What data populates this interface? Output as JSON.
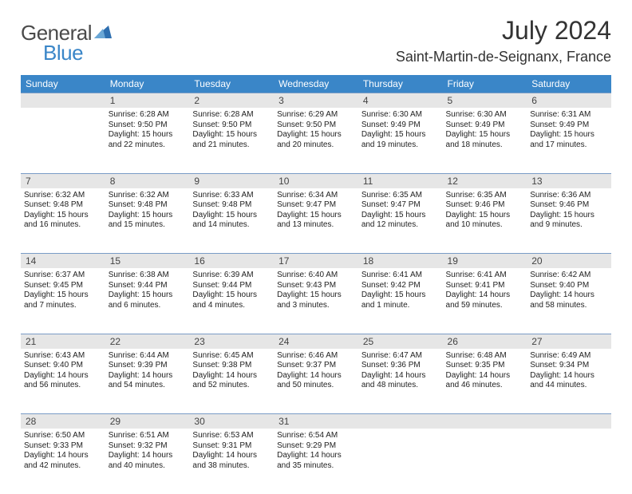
{
  "logo": {
    "text1": "General",
    "text2": "Blue",
    "tri_color": "#2e6fb0"
  },
  "header": {
    "title": "July 2024",
    "location": "Saint-Martin-de-Seignanx, France"
  },
  "colors": {
    "header_bg": "#3a86c8",
    "daynum_bg": "#e6e6e6",
    "row_border": "#7a9cc6"
  },
  "weekdays": [
    "Sunday",
    "Monday",
    "Tuesday",
    "Wednesday",
    "Thursday",
    "Friday",
    "Saturday"
  ],
  "weeks": [
    {
      "nums": [
        "",
        "1",
        "2",
        "3",
        "4",
        "5",
        "6"
      ],
      "cells": [
        null,
        {
          "sr": "Sunrise: 6:28 AM",
          "ss": "Sunset: 9:50 PM",
          "d1": "Daylight: 15 hours",
          "d2": "and 22 minutes."
        },
        {
          "sr": "Sunrise: 6:28 AM",
          "ss": "Sunset: 9:50 PM",
          "d1": "Daylight: 15 hours",
          "d2": "and 21 minutes."
        },
        {
          "sr": "Sunrise: 6:29 AM",
          "ss": "Sunset: 9:50 PM",
          "d1": "Daylight: 15 hours",
          "d2": "and 20 minutes."
        },
        {
          "sr": "Sunrise: 6:30 AM",
          "ss": "Sunset: 9:49 PM",
          "d1": "Daylight: 15 hours",
          "d2": "and 19 minutes."
        },
        {
          "sr": "Sunrise: 6:30 AM",
          "ss": "Sunset: 9:49 PM",
          "d1": "Daylight: 15 hours",
          "d2": "and 18 minutes."
        },
        {
          "sr": "Sunrise: 6:31 AM",
          "ss": "Sunset: 9:49 PM",
          "d1": "Daylight: 15 hours",
          "d2": "and 17 minutes."
        }
      ]
    },
    {
      "nums": [
        "7",
        "8",
        "9",
        "10",
        "11",
        "12",
        "13"
      ],
      "cells": [
        {
          "sr": "Sunrise: 6:32 AM",
          "ss": "Sunset: 9:48 PM",
          "d1": "Daylight: 15 hours",
          "d2": "and 16 minutes."
        },
        {
          "sr": "Sunrise: 6:32 AM",
          "ss": "Sunset: 9:48 PM",
          "d1": "Daylight: 15 hours",
          "d2": "and 15 minutes."
        },
        {
          "sr": "Sunrise: 6:33 AM",
          "ss": "Sunset: 9:48 PM",
          "d1": "Daylight: 15 hours",
          "d2": "and 14 minutes."
        },
        {
          "sr": "Sunrise: 6:34 AM",
          "ss": "Sunset: 9:47 PM",
          "d1": "Daylight: 15 hours",
          "d2": "and 13 minutes."
        },
        {
          "sr": "Sunrise: 6:35 AM",
          "ss": "Sunset: 9:47 PM",
          "d1": "Daylight: 15 hours",
          "d2": "and 12 minutes."
        },
        {
          "sr": "Sunrise: 6:35 AM",
          "ss": "Sunset: 9:46 PM",
          "d1": "Daylight: 15 hours",
          "d2": "and 10 minutes."
        },
        {
          "sr": "Sunrise: 6:36 AM",
          "ss": "Sunset: 9:46 PM",
          "d1": "Daylight: 15 hours",
          "d2": "and 9 minutes."
        }
      ]
    },
    {
      "nums": [
        "14",
        "15",
        "16",
        "17",
        "18",
        "19",
        "20"
      ],
      "cells": [
        {
          "sr": "Sunrise: 6:37 AM",
          "ss": "Sunset: 9:45 PM",
          "d1": "Daylight: 15 hours",
          "d2": "and 7 minutes."
        },
        {
          "sr": "Sunrise: 6:38 AM",
          "ss": "Sunset: 9:44 PM",
          "d1": "Daylight: 15 hours",
          "d2": "and 6 minutes."
        },
        {
          "sr": "Sunrise: 6:39 AM",
          "ss": "Sunset: 9:44 PM",
          "d1": "Daylight: 15 hours",
          "d2": "and 4 minutes."
        },
        {
          "sr": "Sunrise: 6:40 AM",
          "ss": "Sunset: 9:43 PM",
          "d1": "Daylight: 15 hours",
          "d2": "and 3 minutes."
        },
        {
          "sr": "Sunrise: 6:41 AM",
          "ss": "Sunset: 9:42 PM",
          "d1": "Daylight: 15 hours",
          "d2": "and 1 minute."
        },
        {
          "sr": "Sunrise: 6:41 AM",
          "ss": "Sunset: 9:41 PM",
          "d1": "Daylight: 14 hours",
          "d2": "and 59 minutes."
        },
        {
          "sr": "Sunrise: 6:42 AM",
          "ss": "Sunset: 9:40 PM",
          "d1": "Daylight: 14 hours",
          "d2": "and 58 minutes."
        }
      ]
    },
    {
      "nums": [
        "21",
        "22",
        "23",
        "24",
        "25",
        "26",
        "27"
      ],
      "cells": [
        {
          "sr": "Sunrise: 6:43 AM",
          "ss": "Sunset: 9:40 PM",
          "d1": "Daylight: 14 hours",
          "d2": "and 56 minutes."
        },
        {
          "sr": "Sunrise: 6:44 AM",
          "ss": "Sunset: 9:39 PM",
          "d1": "Daylight: 14 hours",
          "d2": "and 54 minutes."
        },
        {
          "sr": "Sunrise: 6:45 AM",
          "ss": "Sunset: 9:38 PM",
          "d1": "Daylight: 14 hours",
          "d2": "and 52 minutes."
        },
        {
          "sr": "Sunrise: 6:46 AM",
          "ss": "Sunset: 9:37 PM",
          "d1": "Daylight: 14 hours",
          "d2": "and 50 minutes."
        },
        {
          "sr": "Sunrise: 6:47 AM",
          "ss": "Sunset: 9:36 PM",
          "d1": "Daylight: 14 hours",
          "d2": "and 48 minutes."
        },
        {
          "sr": "Sunrise: 6:48 AM",
          "ss": "Sunset: 9:35 PM",
          "d1": "Daylight: 14 hours",
          "d2": "and 46 minutes."
        },
        {
          "sr": "Sunrise: 6:49 AM",
          "ss": "Sunset: 9:34 PM",
          "d1": "Daylight: 14 hours",
          "d2": "and 44 minutes."
        }
      ]
    },
    {
      "nums": [
        "28",
        "29",
        "30",
        "31",
        "",
        "",
        ""
      ],
      "cells": [
        {
          "sr": "Sunrise: 6:50 AM",
          "ss": "Sunset: 9:33 PM",
          "d1": "Daylight: 14 hours",
          "d2": "and 42 minutes."
        },
        {
          "sr": "Sunrise: 6:51 AM",
          "ss": "Sunset: 9:32 PM",
          "d1": "Daylight: 14 hours",
          "d2": "and 40 minutes."
        },
        {
          "sr": "Sunrise: 6:53 AM",
          "ss": "Sunset: 9:31 PM",
          "d1": "Daylight: 14 hours",
          "d2": "and 38 minutes."
        },
        {
          "sr": "Sunrise: 6:54 AM",
          "ss": "Sunset: 9:29 PM",
          "d1": "Daylight: 14 hours",
          "d2": "and 35 minutes."
        },
        null,
        null,
        null
      ]
    }
  ]
}
